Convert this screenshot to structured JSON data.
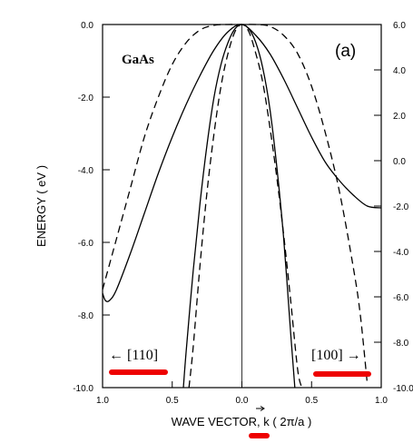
{
  "chart_data": {
    "type": "line",
    "panel_label": "(a)",
    "material": "GaAs",
    "xlabel": "WAVE VECTOR, k ( 2π/a )",
    "xlabel_parts": {
      "prefix": "WAVE VECTOR, ",
      "vector_symbol": "k",
      "suffix": " ( 2π/a )"
    },
    "ylabel": "ENERGY ( eV )",
    "left_direction": "← [110]",
    "right_direction": "[100] →",
    "ylim": [
      -10.0,
      0.0
    ],
    "left_ticks": [
      "0.0",
      "-2.0",
      "-4.0",
      "-6.0",
      "-8.0",
      "-10.0"
    ],
    "right_ticks": [
      "6.0",
      "4.0",
      "2.0",
      "0.0",
      "-2.0",
      "-4.0",
      "-6.0",
      "-8.0",
      "-10.0"
    ],
    "x_ticks": [
      "1.0",
      "0.5",
      "0.0",
      "0.5",
      "1.0"
    ],
    "x_tick_positions": [
      -1.0,
      -0.5,
      0.0,
      0.5,
      1.0
    ],
    "xlim": [
      -1.0,
      1.0
    ],
    "series": [
      {
        "style": "solid",
        "x": [
          -1.0,
          -0.98,
          -0.95,
          -0.9,
          -0.8,
          -0.7,
          -0.6,
          -0.5,
          -0.4,
          -0.3,
          -0.2,
          -0.1,
          0.0,
          0.1,
          0.2,
          0.3,
          0.4,
          0.5,
          0.6,
          0.7,
          0.8,
          0.9,
          1.0
        ],
        "y": [
          -7.4,
          -7.6,
          -7.6,
          -7.3,
          -6.3,
          -5.2,
          -4.1,
          -3.1,
          -2.2,
          -1.4,
          -0.7,
          -0.2,
          0.0,
          -0.3,
          -0.8,
          -1.5,
          -2.3,
          -3.1,
          -3.8,
          -4.3,
          -4.7,
          -5.0,
          -5.05
        ]
      },
      {
        "style": "dashed",
        "x": [
          -1.0,
          -0.9,
          -0.8,
          -0.7,
          -0.6,
          -0.5,
          -0.4,
          -0.3,
          -0.2,
          -0.1,
          0.0,
          0.1,
          0.2,
          0.3,
          0.4,
          0.5,
          0.6,
          0.7,
          0.8,
          0.85,
          0.9
        ],
        "y": [
          -7.3,
          -5.9,
          -4.5,
          -3.1,
          -2.0,
          -1.1,
          -0.5,
          -0.15,
          -0.02,
          0.0,
          0.0,
          0.0,
          -0.05,
          -0.3,
          -0.8,
          -1.7,
          -3.0,
          -4.6,
          -6.7,
          -8.0,
          -9.9
        ]
      },
      {
        "style": "solid",
        "x": [
          -0.42,
          -0.4,
          -0.35,
          -0.3,
          -0.25,
          -0.2,
          -0.15,
          -0.1,
          -0.05,
          0.0,
          0.05,
          0.1,
          0.15,
          0.2,
          0.25,
          0.3,
          0.35,
          0.38
        ],
        "y": [
          -10.0,
          -9.0,
          -6.8,
          -4.9,
          -3.3,
          -2.0,
          -1.1,
          -0.5,
          -0.12,
          0.0,
          -0.12,
          -0.5,
          -1.2,
          -2.3,
          -3.9,
          -5.9,
          -8.5,
          -10.0
        ]
      },
      {
        "style": "dashed",
        "x": [
          -0.38,
          -0.35,
          -0.3,
          -0.25,
          -0.2,
          -0.15,
          -0.1,
          -0.05,
          0.0,
          0.05,
          0.1,
          0.15,
          0.2,
          0.25,
          0.3,
          0.35,
          0.4,
          0.43
        ],
        "y": [
          -10.0,
          -8.9,
          -6.6,
          -4.6,
          -3.0,
          -1.7,
          -0.8,
          -0.2,
          0.0,
          -0.2,
          -0.8,
          -1.6,
          -2.8,
          -4.2,
          -5.8,
          -7.6,
          -9.5,
          -10.0
        ]
      }
    ]
  }
}
